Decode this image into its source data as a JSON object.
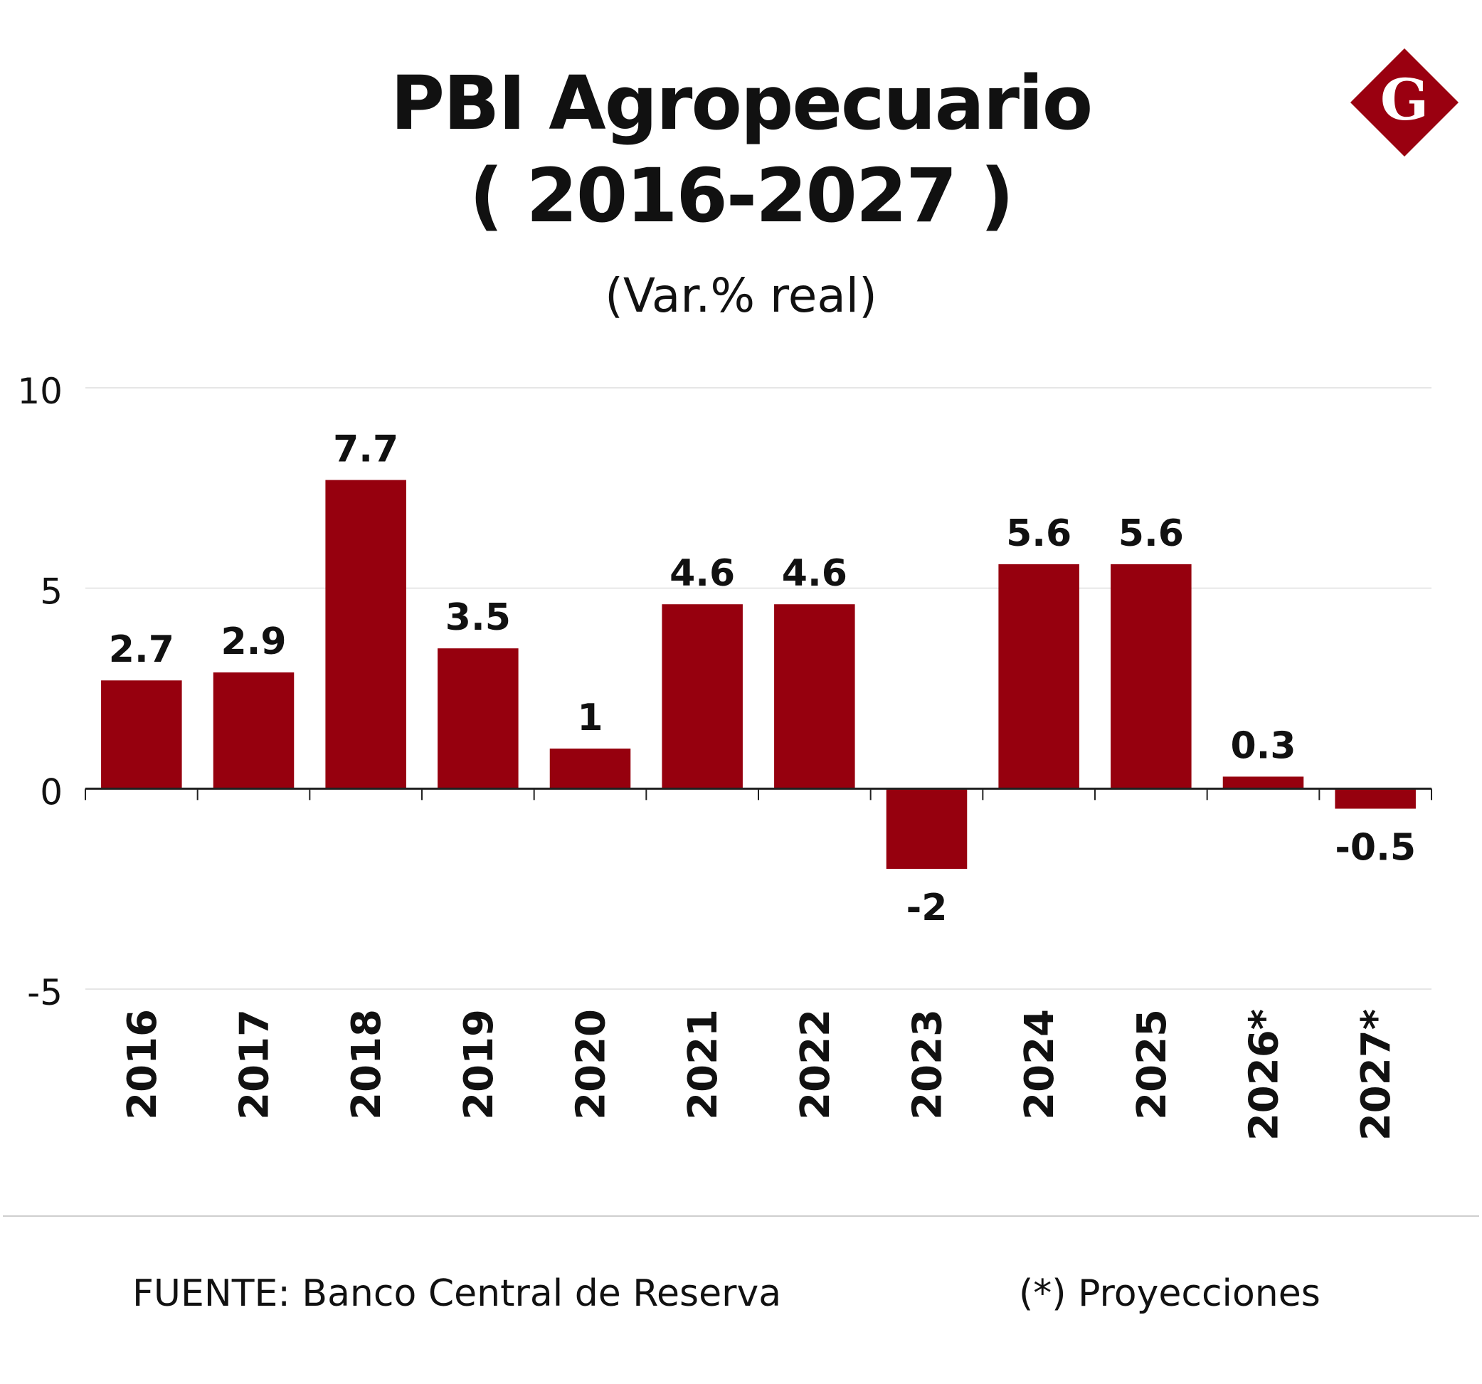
{
  "header": {
    "title_line1": "PBI Agropecuario",
    "title_line2": "( 2016-2027 )",
    "subtitle": "(Var.% real)"
  },
  "logo": {
    "letter": "G",
    "icon": "g-diamond-logo-icon",
    "color": "#9a0010"
  },
  "footer": {
    "source": "FUENTE: Banco Central de Reserva",
    "note": "(*) Proyecciones"
  },
  "colors": {
    "bar": "#96000e",
    "grid": "#e6e6e6",
    "axis": "#222222",
    "text": "#111111"
  },
  "chart_data": {
    "type": "bar",
    "title": "PBI Agropecuario ( 2016-2027 )",
    "subtitle": "(Var.% real)",
    "categories": [
      "2016",
      "2017",
      "2018",
      "2019",
      "2020",
      "2021",
      "2022",
      "2023",
      "2024",
      "2025",
      "2026",
      "2027"
    ],
    "category_marks": [
      "",
      "",
      "",
      "",
      "",
      "",
      "",
      "",
      "",
      "",
      "*",
      "*"
    ],
    "values": [
      2.7,
      2.9,
      7.7,
      3.5,
      1,
      4.6,
      4.6,
      -2,
      5.6,
      5.6,
      0.3,
      -0.5
    ],
    "value_labels": [
      "2.7",
      "2.9",
      "7.7",
      "3.5",
      "1",
      "4.6",
      "4.6",
      "-2",
      "5.6",
      "5.6",
      "0.3",
      "-0.5"
    ],
    "xlabel": "",
    "ylabel": "",
    "ylim": [
      -5,
      10
    ],
    "yticks": [
      10,
      5,
      0,
      -5
    ],
    "ytick_labels": [
      "10",
      "5",
      "0",
      "-5"
    ],
    "grid": true,
    "legend": "none"
  }
}
